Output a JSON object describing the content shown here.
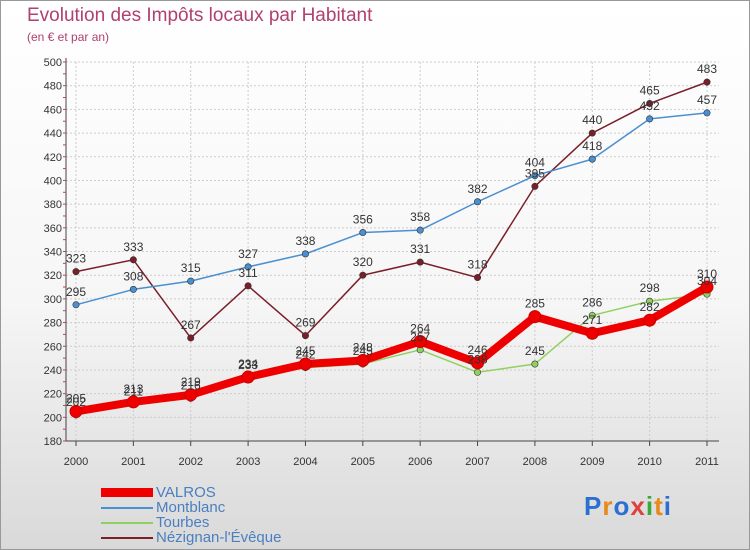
{
  "title": "Evolution des Impôts locaux par Habitant",
  "subtitle": "(en € et par an)",
  "logo": {
    "letters": [
      "P",
      "r",
      "o",
      "x",
      "i",
      "t",
      "i"
    ],
    "colors": [
      "#2a6fd1",
      "#e88a1a",
      "#2a6fd1",
      "#e04040",
      "#3aa83a",
      "#e88a1a",
      "#2a6fd1"
    ]
  },
  "chart_data": {
    "type": "line",
    "title": "Evolution des Impôts locaux par Habitant",
    "subtitle": "(en € et par an)",
    "xlabel": "",
    "ylabel": "",
    "categories": [
      "2000",
      "2001",
      "2002",
      "2003",
      "2004",
      "2005",
      "2006",
      "2007",
      "2008",
      "2009",
      "2010",
      "2011"
    ],
    "ylim": [
      180,
      500
    ],
    "yticks": [
      "180",
      "200",
      "220",
      "240",
      "260",
      "280",
      "300",
      "320",
      "340",
      "360",
      "380",
      "400",
      "420",
      "440",
      "460",
      "480",
      "500"
    ],
    "grid": true,
    "legend": "bottom-left",
    "series": [
      {
        "name": "Nézignan-l'Évêque",
        "color": "#7a1f2a",
        "values": [
          323,
          333,
          267,
          311,
          269,
          320,
          331,
          318,
          395,
          440,
          465,
          483
        ],
        "labels": [
          "323",
          "333",
          "267",
          "311",
          "269",
          "320",
          "331",
          "318",
          "395",
          "440",
          "465",
          "483"
        ]
      },
      {
        "name": "Montblanc",
        "color": "#4a90d0",
        "values": [
          295,
          308,
          315,
          327,
          338,
          356,
          358,
          382,
          404,
          418,
          452,
          457
        ],
        "labels": [
          "295",
          "308",
          "315",
          "327",
          "338",
          "356",
          "358",
          "382",
          "404",
          "418",
          "452",
          "457"
        ]
      },
      {
        "name": "Tourbes",
        "color": "#90d060",
        "values": [
          202,
          211,
          216,
          233,
          242,
          245,
          257,
          238,
          245,
          286,
          298,
          304
        ],
        "labels": [
          "202",
          "211",
          "216",
          "233",
          "242",
          "245",
          "257",
          "238",
          "245",
          "286",
          "298",
          "304"
        ]
      },
      {
        "name": "VALROS",
        "color": "#ee0000",
        "values": [
          205,
          213,
          219,
          234,
          245,
          248,
          264,
          246,
          285,
          271,
          282,
          310
        ],
        "labels": [
          "205",
          "213",
          "219",
          "234",
          "245",
          "248",
          "264",
          "246",
          "285",
          "271",
          "282",
          "310"
        ]
      }
    ],
    "legend_entries": [
      "VALROS",
      "Montblanc",
      "Tourbes",
      "Nézignan-l'Évêque"
    ]
  }
}
